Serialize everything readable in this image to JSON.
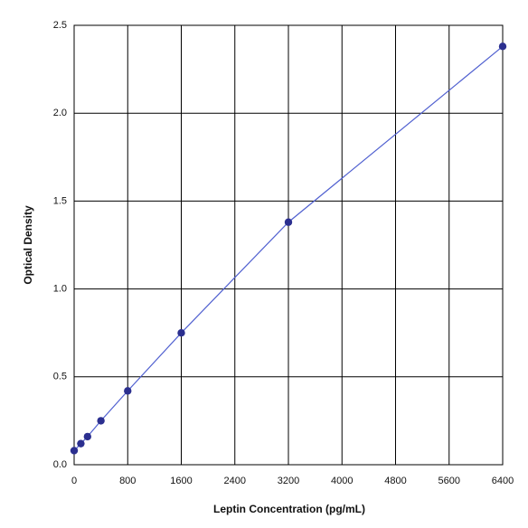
{
  "chart_data": {
    "type": "line",
    "x_label": "Leptin Concentration (pg/mL)",
    "y_label": "Optical Density",
    "x": [
      0,
      100,
      200,
      400,
      800,
      1600,
      3200,
      6400
    ],
    "series": [
      {
        "color": "#2b2f8f",
        "values": [
          0.08,
          0.12,
          0.16,
          0.25,
          0.42,
          0.75,
          1.38,
          2.38
        ]
      }
    ],
    "line_color": "#5060d0",
    "xlim": [
      0,
      6400
    ],
    "xticks": [
      0,
      800,
      1600,
      2400,
      3200,
      4000,
      4800,
      5600,
      6400
    ],
    "ylim": [
      0,
      2.5
    ],
    "yticks": [
      {
        "value": 0,
        "label": "0.0"
      },
      0.5,
      {
        "value": 1,
        "label": "1.0"
      },
      1.5,
      {
        "value": 2,
        "label": "2.0"
      },
      2.5
    ],
    "grid": true
  }
}
